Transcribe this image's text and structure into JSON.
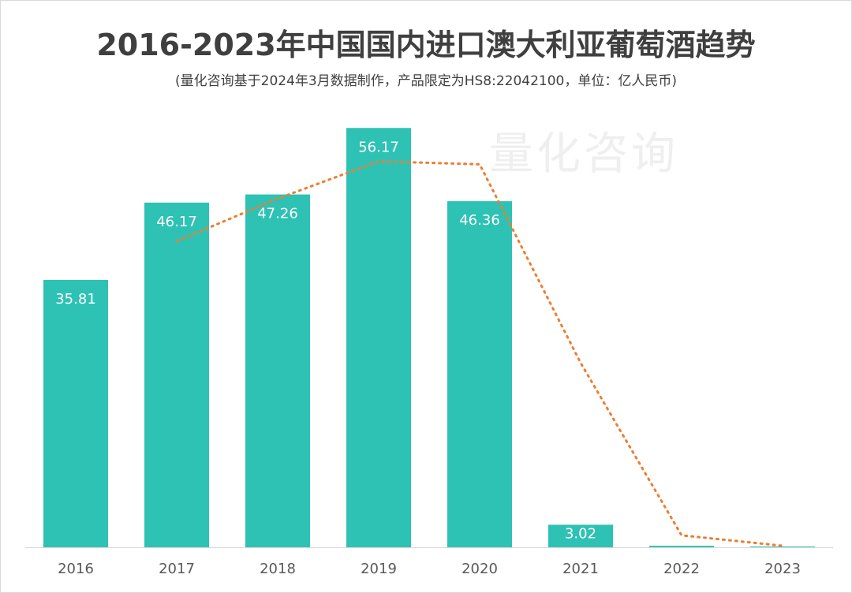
{
  "title": "2016-2023年中国国内进口澳大利亚葡萄酒趋势",
  "subtitle": "(量化咨询基于2024年3月数据制作，产品限定为HS8:22042100，单位：亿人民币)",
  "watermark": "量化咨询",
  "colors": {
    "bar": "#2ec2b5",
    "trend": "#ed7d31",
    "axis_text": "#595959",
    "bar_label": "#ffffff"
  },
  "chart_data": {
    "type": "bar",
    "categories": [
      "2016",
      "2017",
      "2018",
      "2019",
      "2020",
      "2021",
      "2022",
      "2023"
    ],
    "values": [
      35.81,
      46.17,
      47.26,
      56.17,
      46.36,
      3.02,
      0.2,
      0.1
    ],
    "value_labels": [
      "35.81",
      "46.17",
      "47.26",
      "56.17",
      "46.36",
      "3.02",
      "",
      ""
    ],
    "trendline": {
      "style": "dotted",
      "categories": [
        "2017",
        "2018",
        "2019",
        "2020",
        "2021",
        "2022",
        "2023"
      ],
      "values": [
        41.0,
        46.7,
        51.7,
        51.3,
        24.7,
        1.6,
        0.2
      ]
    },
    "ylim": [
      0,
      60
    ],
    "grid": false,
    "legend": "none"
  }
}
